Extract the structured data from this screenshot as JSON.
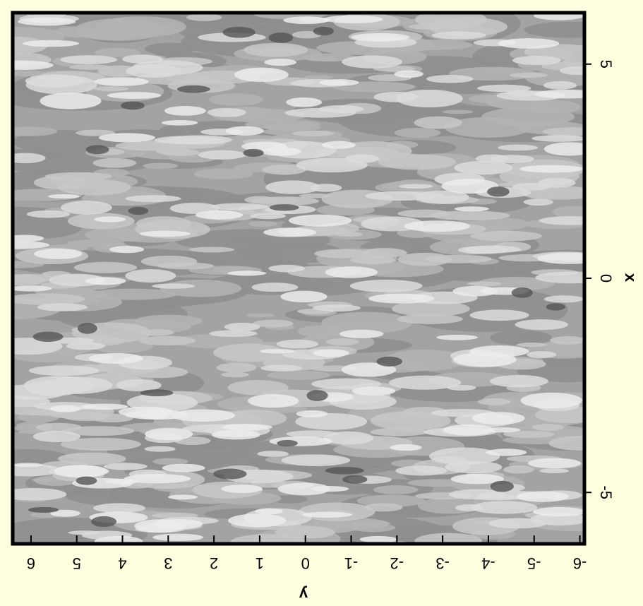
{
  "chart_data": {
    "type": "contour",
    "xlabel": "x",
    "ylabel": "y",
    "xlim": [
      -6.2,
      6.2
    ],
    "xticks": [
      -5,
      0,
      5
    ],
    "ylim": [
      -6.1,
      6.4
    ],
    "yticks": [
      6,
      5,
      4,
      3,
      2,
      1,
      0,
      -1,
      -2,
      -3,
      -4,
      -5,
      -6
    ]
  }
}
